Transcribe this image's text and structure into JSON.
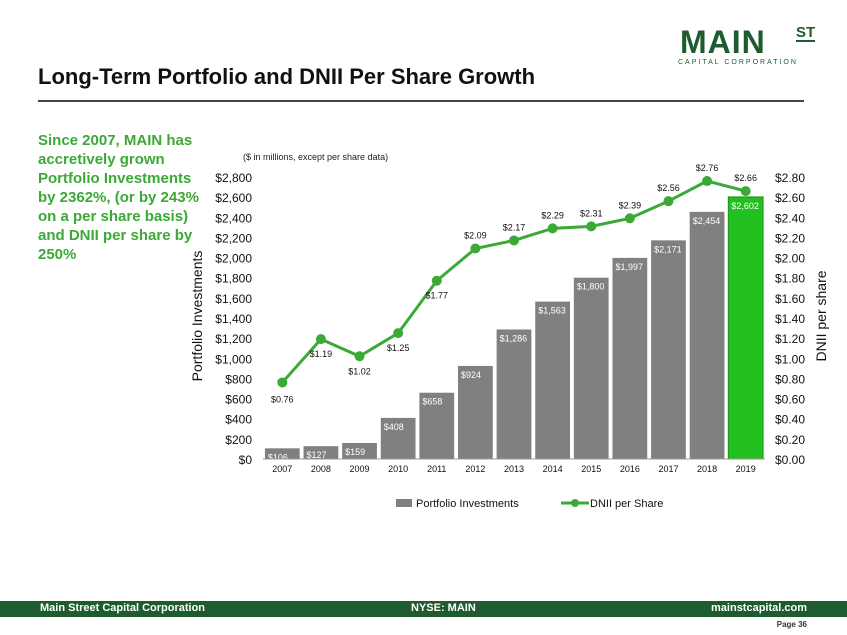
{
  "slide": {
    "title": "Long-Term Portfolio and DNII Per Share Growth",
    "side_text": "Since 2007, MAIN has accretively grown Portfolio Investments by 2362%, (or by 243% on a per share basis) and DNII per share by 250%",
    "logo_main": "MAIN",
    "logo_st": "ST",
    "logo_sub": "CAPITAL CORPORATION",
    "footer_left": "Main Street Capital Corporation",
    "footer_center": "NYSE: MAIN",
    "footer_right": "mainstcapital.com",
    "page": "Page  36"
  },
  "colors": {
    "green_dark": "#1e5b2e",
    "green_text": "#3aa935",
    "bar_gray": "#808080",
    "bar_highlight": "#22c01f",
    "line_green": "#3aa935"
  },
  "chart_data": {
    "type": "bar+line",
    "note": "($ in millions, except per share data)",
    "categories": [
      "2007",
      "2008",
      "2009",
      "2010",
      "2011",
      "2012",
      "2013",
      "2014",
      "2015",
      "2016",
      "2017",
      "2018",
      "2019"
    ],
    "series": [
      {
        "name": "Portfolio Investments",
        "type": "bar",
        "axis": "left",
        "values": [
          106,
          127,
          159,
          408,
          658,
          924,
          1286,
          1563,
          1800,
          1997,
          2171,
          2454,
          2602
        ],
        "labels": [
          "$106",
          "$127",
          "$159",
          "$408",
          "$658",
          "$924",
          "$1,286",
          "$1,563",
          "$1,800",
          "$1,997",
          "$2,171",
          "$2,454",
          "$2,602"
        ]
      },
      {
        "name": "DNII per Share",
        "type": "line",
        "axis": "right",
        "values": [
          0.76,
          1.19,
          1.02,
          1.25,
          1.77,
          2.09,
          2.17,
          2.29,
          2.31,
          2.39,
          2.56,
          2.76,
          2.66
        ],
        "labels": [
          "$0.76",
          "$1.19",
          "$1.02",
          "$1.25",
          "$1.77",
          "$2.09",
          "$2.17",
          "$2.29",
          "$2.31",
          "$2.39",
          "$2.56",
          "$2.76",
          "$2.66"
        ]
      }
    ],
    "ylabel": "Portfolio Investments",
    "y2label": "DNII per share",
    "ylim": [
      0,
      2800
    ],
    "y2lim": [
      0,
      2.8
    ],
    "yticks": [
      "$0",
      "$200",
      "$400",
      "$600",
      "$800",
      "$1,000",
      "$1,200",
      "$1,400",
      "$1,600",
      "$1,800",
      "$2,000",
      "$2,200",
      "$2,400",
      "$2,600",
      "$2,800"
    ],
    "y2ticks": [
      "$0.00",
      "$0.20",
      "$0.40",
      "$0.60",
      "$0.80",
      "$1.00",
      "$1.20",
      "$1.40",
      "$1.60",
      "$1.80",
      "$2.00",
      "$2.20",
      "$2.40",
      "$2.60",
      "$2.80"
    ],
    "grid": false,
    "legend": "bottom"
  }
}
